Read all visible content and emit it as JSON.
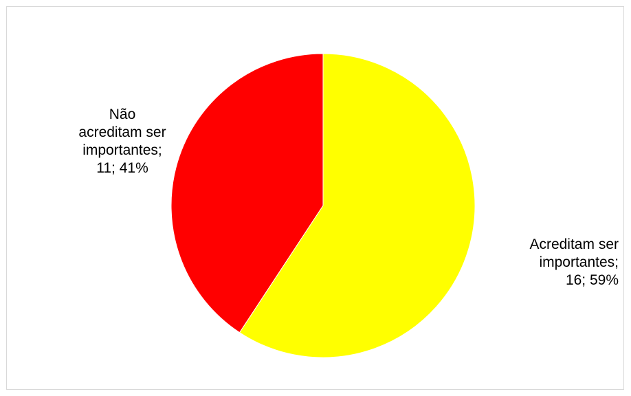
{
  "chart_data": {
    "type": "pie",
    "series": [
      {
        "values": [
          16,
          11
        ]
      }
    ],
    "categories": [
      "Acreditam ser importantes",
      "Não acreditam ser importantes"
    ],
    "values": [
      16,
      11
    ],
    "percentages": [
      "59%",
      "41%"
    ],
    "colors": [
      "#ffff00",
      "#ff0000"
    ],
    "data_labels": [
      "Acreditam ser\nimportantes;\n16; 59%",
      "Não\nacreditam ser\nimportantes;\n11; 41%"
    ],
    "start_angle_deg": 0,
    "direction": "clockwise",
    "legend": "none"
  }
}
